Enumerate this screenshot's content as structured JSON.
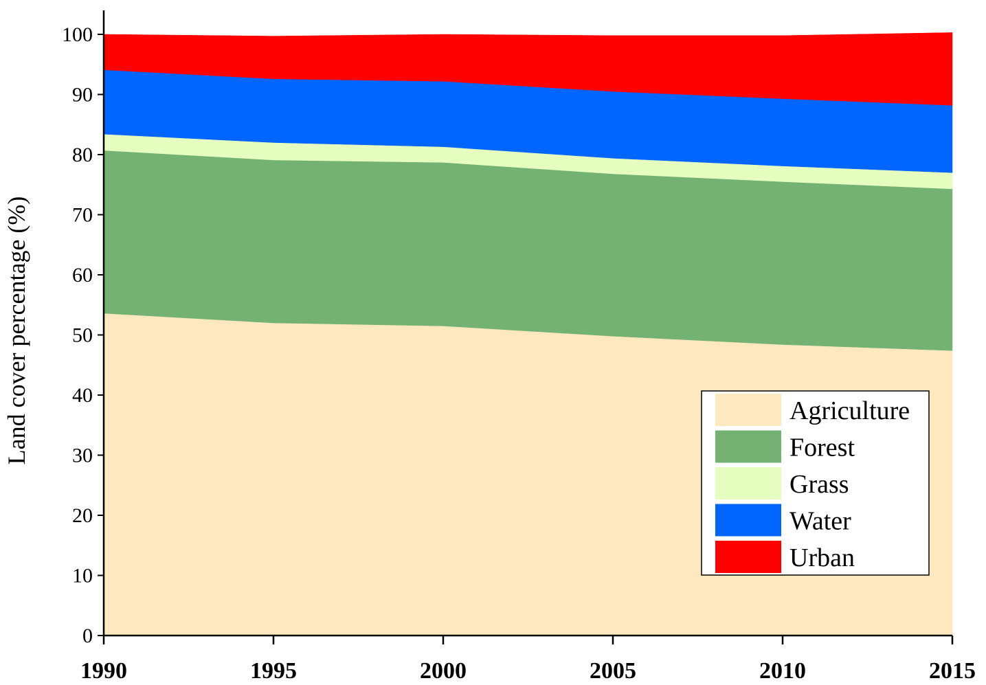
{
  "chart_data": {
    "type": "area",
    "stacked": true,
    "title": "",
    "xlabel": "",
    "ylabel": "Land cover percentage (%)",
    "x": [
      1990,
      1995,
      2000,
      2005,
      2010,
      2015
    ],
    "xticks": [
      "1990",
      "1995",
      "2000",
      "2005",
      "2010",
      "2015"
    ],
    "xlim": [
      1990,
      2015
    ],
    "ylim": [
      0,
      104
    ],
    "yticks": [
      "0",
      "10",
      "20",
      "30",
      "40",
      "50",
      "60",
      "70",
      "80",
      "90",
      "100"
    ],
    "grid": false,
    "legend_position": "lower-right",
    "series": [
      {
        "name": "Agriculture",
        "color": "#FDE8C0",
        "values": [
          53.6,
          52.0,
          51.5,
          49.8,
          48.4,
          47.4
        ]
      },
      {
        "name": "Forest",
        "color": "#74B274",
        "values": [
          27.1,
          27.1,
          27.2,
          27.0,
          27.1,
          26.9
        ]
      },
      {
        "name": "Grass",
        "color": "#E5FDBE",
        "values": [
          2.7,
          2.9,
          2.6,
          2.6,
          2.6,
          2.7
        ]
      },
      {
        "name": "Water",
        "color": "#0066FF",
        "values": [
          10.7,
          10.6,
          10.9,
          11.1,
          11.2,
          11.2
        ]
      },
      {
        "name": "Urban",
        "color": "#FF0000",
        "values": [
          5.9,
          7.1,
          7.8,
          9.3,
          10.5,
          12.1
        ]
      }
    ]
  }
}
